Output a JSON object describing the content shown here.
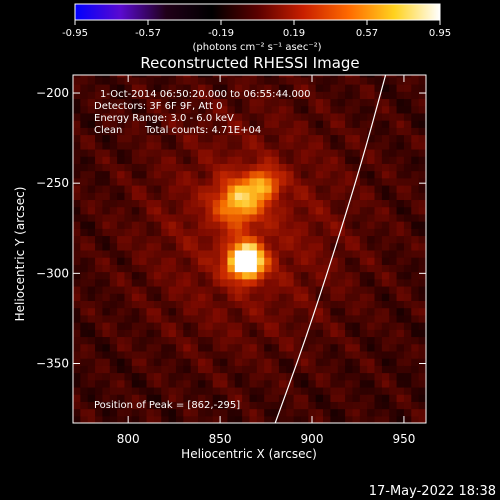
{
  "chart_data": {
    "type": "heatmap",
    "title": "Reconstructed RHESSI Image",
    "xlabel": "Heliocentric X (arcsec)",
    "ylabel": "Heliocentric Y (arcsec)",
    "xlim": [
      770,
      962
    ],
    "ylim": [
      -383,
      -190
    ],
    "xticks": [
      800,
      850,
      900,
      950
    ],
    "yticks": [
      -200,
      -250,
      -300,
      -350
    ],
    "grid": false,
    "colorbar": {
      "position": "top",
      "ticks": [
        "-0.95",
        "-0.57",
        "-0.19",
        "0.19",
        "0.57",
        "0.95"
      ],
      "unit_label": "(photons cm⁻² s⁻¹ asec⁻²)",
      "colormap": [
        "#0000ff",
        "#5a0ad0",
        "#200018",
        "#000000",
        "#5a0000",
        "#c81e00",
        "#ff6a00",
        "#ffd21e",
        "#ffffff"
      ]
    },
    "sources": [
      {
        "x": 862,
        "y": -295,
        "peak": 1.0,
        "sigma_arcsec": 7
      },
      {
        "x": 858,
        "y": -262,
        "peak": 0.55,
        "sigma_arcsec": 9
      },
      {
        "x": 872,
        "y": -252,
        "peak": 0.45,
        "sigma_arcsec": 6
      }
    ],
    "limb_curve": [
      {
        "x": 940,
        "y": -190
      },
      {
        "x": 928,
        "y": -235
      },
      {
        "x": 913,
        "y": -285
      },
      {
        "x": 896,
        "y": -338
      },
      {
        "x": 880,
        "y": -383
      }
    ],
    "annotations": {
      "time_range": "1-Oct-2014 06:50:20.000 to 06:55:44.000",
      "detectors": "Detectors: 3F 6F 9F, Att 0",
      "energy_range": "Energy Range: 3.0 - 6.0 keV",
      "algorithm": "Clean",
      "total_counts": "Total counts: 4.71E+04",
      "peak_position": "Position of Peak = [862,-295]"
    }
  },
  "footer": {
    "timestamp": "17-May-2022 18:38"
  }
}
